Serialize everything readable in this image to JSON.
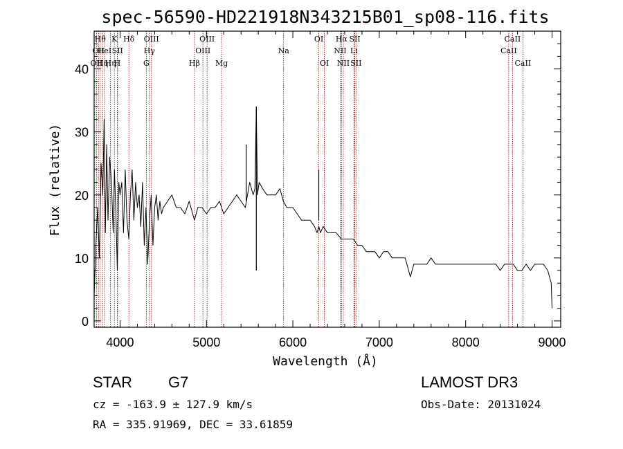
{
  "chart_data": {
    "type": "line",
    "title": "spec-56590-HD221918N343215B01_sp08-116.fits",
    "xlabel": "Wavelength (Å)",
    "ylabel": "Flux (relative)",
    "xlim": [
      3700,
      9100
    ],
    "ylim": [
      -1,
      46
    ],
    "xticks": [
      4000,
      5000,
      6000,
      7000,
      8000,
      9000
    ],
    "yticks": [
      0,
      10,
      20,
      30,
      40
    ],
    "series": [
      {
        "name": "flux",
        "x": [
          3700,
          3720,
          3740,
          3760,
          3780,
          3800,
          3815,
          3830,
          3845,
          3860,
          3880,
          3900,
          3920,
          3935,
          3950,
          3968,
          3985,
          4000,
          4020,
          4040,
          4060,
          4080,
          4101,
          4120,
          4140,
          4160,
          4180,
          4200,
          4220,
          4240,
          4260,
          4280,
          4300,
          4320,
          4340,
          4360,
          4380,
          4400,
          4420,
          4440,
          4460,
          4480,
          4500,
          4550,
          4600,
          4650,
          4700,
          4750,
          4800,
          4861,
          4900,
          4950,
          5000,
          5050,
          5100,
          5150,
          5200,
          5250,
          5300,
          5350,
          5400,
          5450,
          5500,
          5540,
          5560,
          5577,
          5590,
          5610,
          5650,
          5700,
          5750,
          5800,
          5850,
          5890,
          5930,
          5950,
          6000,
          6050,
          6100,
          6150,
          6200,
          6250,
          6280,
          6300,
          6320,
          6350,
          6400,
          6450,
          6500,
          6563,
          6600,
          6650,
          6700,
          6750,
          6800,
          6850,
          6900,
          6950,
          7000,
          7050,
          7100,
          7150,
          7200,
          7250,
          7300,
          7340,
          7360,
          7400,
          7450,
          7500,
          7550,
          7600,
          7650,
          7700,
          7750,
          7800,
          7850,
          7900,
          7950,
          8000,
          8050,
          8100,
          8150,
          8200,
          8250,
          8300,
          8350,
          8400,
          8450,
          8500,
          8550,
          8600,
          8650,
          8700,
          8750,
          8800,
          8850,
          8900,
          8950,
          8990,
          9000
        ],
        "y": [
          4,
          12,
          18,
          10,
          25,
          20,
          32,
          14,
          28,
          16,
          26,
          22,
          14,
          24,
          18,
          8,
          22,
          20,
          22,
          14,
          24,
          16,
          13,
          20,
          24,
          16,
          22,
          18,
          20,
          15,
          22,
          12,
          18,
          9,
          16,
          20,
          12,
          18,
          20,
          16,
          19,
          17,
          18,
          19,
          20,
          18,
          18,
          17,
          19,
          16,
          18,
          18,
          17,
          18,
          18,
          19,
          17,
          18,
          19,
          20,
          19,
          18,
          22,
          20,
          21,
          34,
          20,
          22,
          21,
          20,
          20,
          20,
          21,
          19,
          18,
          18,
          18,
          17,
          16,
          16,
          16,
          15,
          14,
          15,
          14,
          15,
          14,
          14,
          14,
          13,
          13,
          13,
          13,
          12,
          12,
          11,
          11,
          11,
          10,
          11,
          11,
          10,
          10,
          10,
          10,
          8,
          7,
          9,
          9,
          9,
          9,
          10,
          9,
          9,
          9,
          9,
          9,
          9,
          9,
          9,
          9,
          9,
          9,
          9,
          9,
          9,
          9,
          8,
          9,
          9,
          9,
          8,
          8,
          9,
          8,
          9,
          9,
          9,
          8,
          6,
          2
        ]
      }
    ],
    "spikes": [
      {
        "x": 5577,
        "y_from": 8,
        "y_to": 34
      },
      {
        "x": 5460,
        "y_from": 19,
        "y_to": 28
      },
      {
        "x": 6300,
        "y_from": 16,
        "y_to": 24
      }
    ],
    "line_markers": [
      {
        "x": 3727,
        "label": "OII",
        "row": 3
      },
      {
        "x": 3750,
        "label": "OII",
        "row": 2
      },
      {
        "x": 3770,
        "label": "Hθ",
        "row": 1
      },
      {
        "x": 3797,
        "label": "Hη",
        "row": 3
      },
      {
        "x": 3820,
        "label": "HeI",
        "row": 2
      },
      {
        "x": 3889,
        "label": "Hη",
        "row": 3
      },
      {
        "x": 3934,
        "label": "K",
        "row": 1
      },
      {
        "x": 3968,
        "label": "H",
        "row": 3
      },
      {
        "x": 3970,
        "label": "SII",
        "row": 2
      },
      {
        "x": 4102,
        "label": "Hδ",
        "row": 1
      },
      {
        "x": 4304,
        "label": "G",
        "row": 3
      },
      {
        "x": 4340,
        "label": "Hγ",
        "row": 2
      },
      {
        "x": 4363,
        "label": "OIII",
        "row": 1
      },
      {
        "x": 4861,
        "label": "Hβ",
        "row": 3
      },
      {
        "x": 4959,
        "label": "OIII",
        "row": 2
      },
      {
        "x": 5007,
        "label": "OIII",
        "row": 1
      },
      {
        "x": 5175,
        "label": "Mg",
        "row": 3
      },
      {
        "x": 5893,
        "label": "Na",
        "row": 2
      },
      {
        "x": 6300,
        "label": "OI",
        "row": 1
      },
      {
        "x": 6364,
        "label": "OI",
        "row": 3
      },
      {
        "x": 6548,
        "label": "NII",
        "row": 2
      },
      {
        "x": 6563,
        "label": "Hα",
        "row": 1
      },
      {
        "x": 6584,
        "label": "NII",
        "row": 3
      },
      {
        "x": 6707,
        "label": "Li",
        "row": 2
      },
      {
        "x": 6717,
        "label": "SII",
        "row": 1
      },
      {
        "x": 6731,
        "label": "SII",
        "row": 3
      },
      {
        "x": 8498,
        "label": "CaII",
        "row": 2
      },
      {
        "x": 8542,
        "label": "CaII",
        "row": 1
      },
      {
        "x": 8662,
        "label": "CaII",
        "row": 3
      }
    ],
    "grid": false,
    "colors": {
      "line": "#000000",
      "marker": "#8b0000",
      "axis": "#000000"
    }
  },
  "info": {
    "object_class": "STAR",
    "subclass": "G7",
    "survey": "LAMOST DR3",
    "redshift": "cz = -163.9 ± 127.9 km/s",
    "obs_date": "Obs-Date: 20131024",
    "coords": "RA = 335.91969, DEC =  33.61859"
  }
}
